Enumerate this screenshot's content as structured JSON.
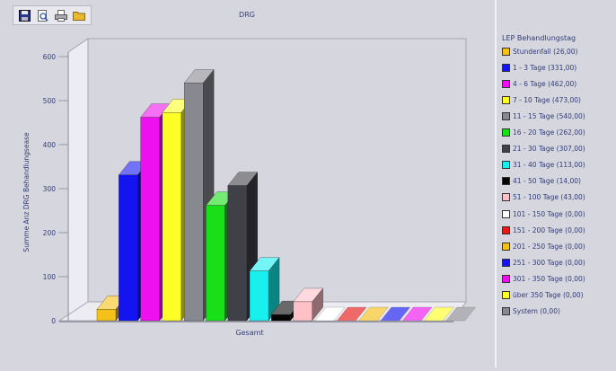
{
  "toolbar": {
    "icons": [
      "save-icon",
      "print-preview-icon",
      "print-icon",
      "folder-icon"
    ]
  },
  "chart_data": {
    "type": "bar",
    "title": "DRG",
    "xlabel": "Gesamt",
    "ylabel": "Summe Anz DRG Behandlungsease",
    "ylim": [
      0,
      600
    ],
    "yticks": [
      "0",
      "100",
      "200",
      "300",
      "400",
      "500",
      "600"
    ],
    "categories": [
      "Gesamt"
    ],
    "legend_title": "LEP Behandlungstag",
    "legend_position": "right",
    "grid": false,
    "series": [
      {
        "name": "Stundenfall (26,00)",
        "value": 26,
        "color": "#f5c018"
      },
      {
        "name": "1 - 3 Tage (331,00)",
        "value": 331,
        "color": "#1414f0"
      },
      {
        "name": "4 - 6 Tage (462,00)",
        "value": 462,
        "color": "#ee10ee"
      },
      {
        "name": "7 - 10 Tage (473,00)",
        "value": 473,
        "color": "#ffff28"
      },
      {
        "name": "11 - 15 Tage (540,00)",
        "value": 540,
        "color": "#888890"
      },
      {
        "name": "16 - 20 Tage (262,00)",
        "value": 262,
        "color": "#18e018"
      },
      {
        "name": "21 - 30 Tage (307,00)",
        "value": 307,
        "color": "#404048"
      },
      {
        "name": "31 - 40 Tage (113,00)",
        "value": 113,
        "color": "#18f0f0"
      },
      {
        "name": "41 - 50 Tage (14,00)",
        "value": 14,
        "color": "#050505"
      },
      {
        "name": "51 - 100 Tage (43,00)",
        "value": 43,
        "color": "#ffc0c8"
      },
      {
        "name": "101 - 150 Tage (0,00)",
        "value": 0,
        "color": "#ffffff"
      },
      {
        "name": "151 - 200 Tage (0,00)",
        "value": 0,
        "color": "#e81818"
      },
      {
        "name": "201 - 250 Tage (0,00)",
        "value": 0,
        "color": "#f5c018"
      },
      {
        "name": "251 - 300 Tage (0,00)",
        "value": 0,
        "color": "#1414f0"
      },
      {
        "name": "301 - 350 Tage (0,00)",
        "value": 0,
        "color": "#ee10ee"
      },
      {
        "name": "über 350 Tage (0,00)",
        "value": 0,
        "color": "#ffff28"
      },
      {
        "name": "System (0,00)",
        "value": 0,
        "color": "#888890"
      }
    ]
  }
}
